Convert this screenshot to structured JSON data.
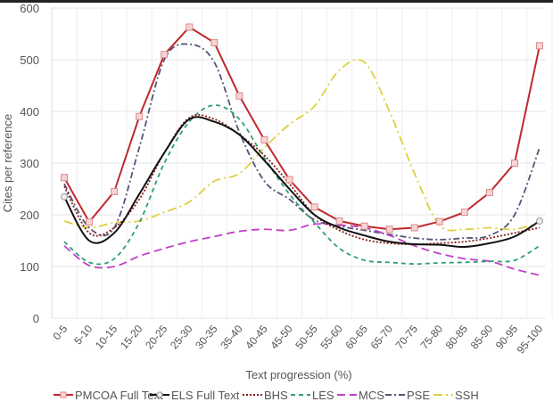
{
  "chart_data": {
    "type": "line",
    "title": "",
    "xlabel": "Text progression (%)",
    "ylabel": "Cites per reference",
    "ylim": [
      0,
      600
    ],
    "yticks": [
      0,
      100,
      200,
      300,
      400,
      500,
      600
    ],
    "grid": true,
    "legend_position": "bottom",
    "categories": [
      "0-5",
      "5-10",
      "10-15",
      "15-20",
      "20-25",
      "25-30",
      "30-35",
      "35-40",
      "40-45",
      "45-50",
      "50-55",
      "55-60",
      "60-65",
      "65-70",
      "70-75",
      "75-80",
      "80-85",
      "85-90",
      "90-95",
      "95-100"
    ],
    "series": [
      {
        "name": "PMCOA Full Text",
        "color": "#c0282d",
        "dash": "",
        "marker": "square",
        "values": [
          272,
          186,
          245,
          390,
          510,
          563,
          533,
          430,
          345,
          268,
          215,
          188,
          178,
          172,
          175,
          187,
          205,
          243,
          300,
          527
        ]
      },
      {
        "name": "ELS Full Text",
        "color": "#111111",
        "dash": "",
        "marker": "circle",
        "values": [
          235,
          150,
          165,
          240,
          320,
          385,
          380,
          355,
          305,
          250,
          200,
          175,
          160,
          148,
          143,
          142,
          138,
          145,
          158,
          188
        ]
      },
      {
        "name": "BHS",
        "color": "#8b1a1a",
        "dash": "2,2",
        "marker": "",
        "values": [
          255,
          165,
          175,
          230,
          320,
          388,
          385,
          355,
          315,
          260,
          200,
          170,
          152,
          145,
          143,
          145,
          148,
          155,
          165,
          175
        ]
      },
      {
        "name": "LES",
        "color": "#2e9e78",
        "dash": "5,4",
        "marker": "",
        "values": [
          148,
          108,
          115,
          185,
          300,
          380,
          412,
          385,
          310,
          240,
          185,
          135,
          112,
          108,
          105,
          107,
          108,
          110,
          112,
          140
        ]
      },
      {
        "name": "MCS",
        "color": "#c040c8",
        "dash": "9,5",
        "marker": "",
        "values": [
          140,
          102,
          100,
          120,
          135,
          148,
          158,
          168,
          172,
          170,
          182,
          180,
          175,
          160,
          140,
          125,
          115,
          110,
          95,
          83
        ]
      },
      {
        "name": "PSE",
        "color": "#555577",
        "dash": "7,3,2,3",
        "marker": "",
        "values": [
          260,
          175,
          175,
          330,
          500,
          530,
          495,
          360,
          265,
          230,
          190,
          178,
          170,
          162,
          155,
          152,
          155,
          160,
          200,
          330
        ]
      },
      {
        "name": "SSH",
        "color": "#e0d040",
        "dash": "10,4,2,4",
        "marker": "",
        "values": [
          188,
          175,
          185,
          188,
          205,
          225,
          265,
          280,
          330,
          375,
          410,
          480,
          495,
          400,
          280,
          180,
          172,
          175,
          172,
          185
        ]
      }
    ]
  }
}
